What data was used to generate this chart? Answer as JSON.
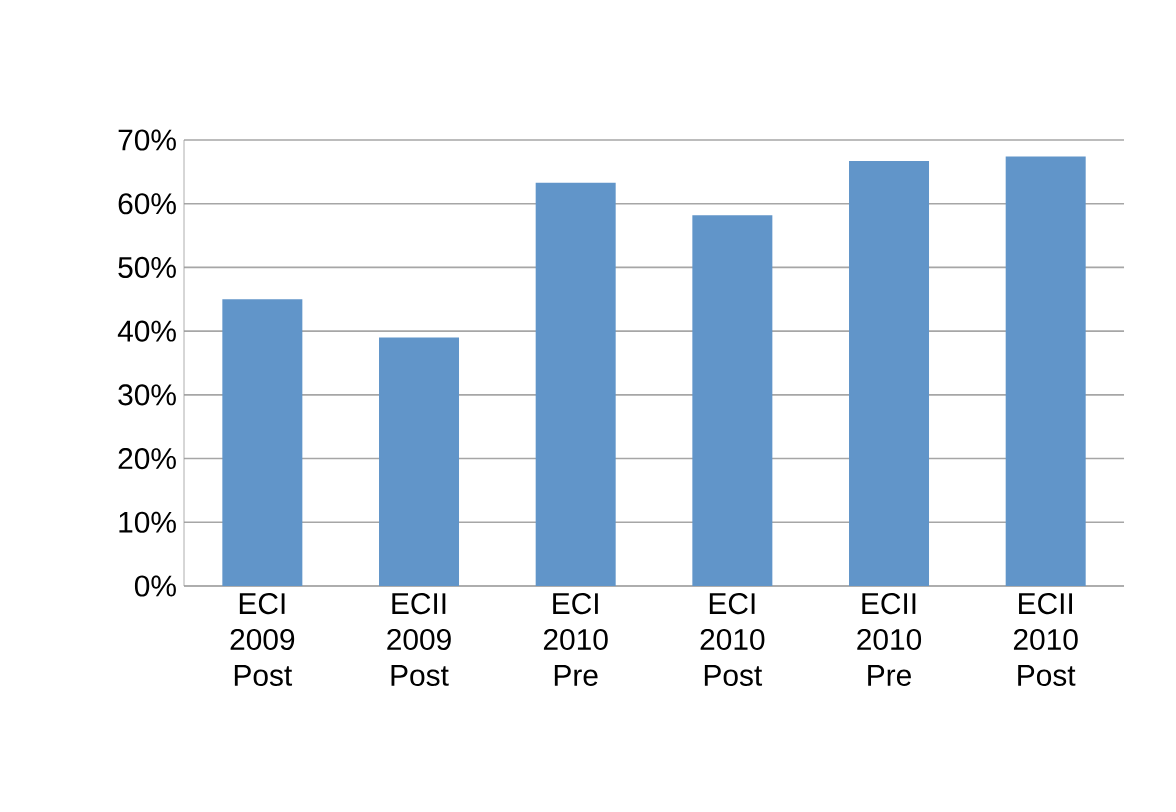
{
  "chart_data": {
    "type": "bar",
    "categories": [
      "ECI 2009 Post",
      "ECII 2009 Post",
      "ECI 2010 Pre",
      "ECI 2010 Post",
      "ECII 2010 Pre",
      "ECII 2010 Post"
    ],
    "values": [
      45,
      39,
      63.3,
      58.2,
      66.7,
      67.4
    ],
    "color": "#6195c9",
    "ylim": [
      0,
      70
    ],
    "yticks": [
      {
        "value": 0,
        "label": "0%"
      },
      {
        "value": 10,
        "label": "10%"
      },
      {
        "value": 20,
        "label": "20%"
      },
      {
        "value": 30,
        "label": "30%"
      },
      {
        "value": 40,
        "label": "40%"
      },
      {
        "value": 50,
        "label": "50%"
      },
      {
        "value": 60,
        "label": "60%"
      },
      {
        "value": 70,
        "label": "70%"
      }
    ],
    "grid": "y"
  }
}
